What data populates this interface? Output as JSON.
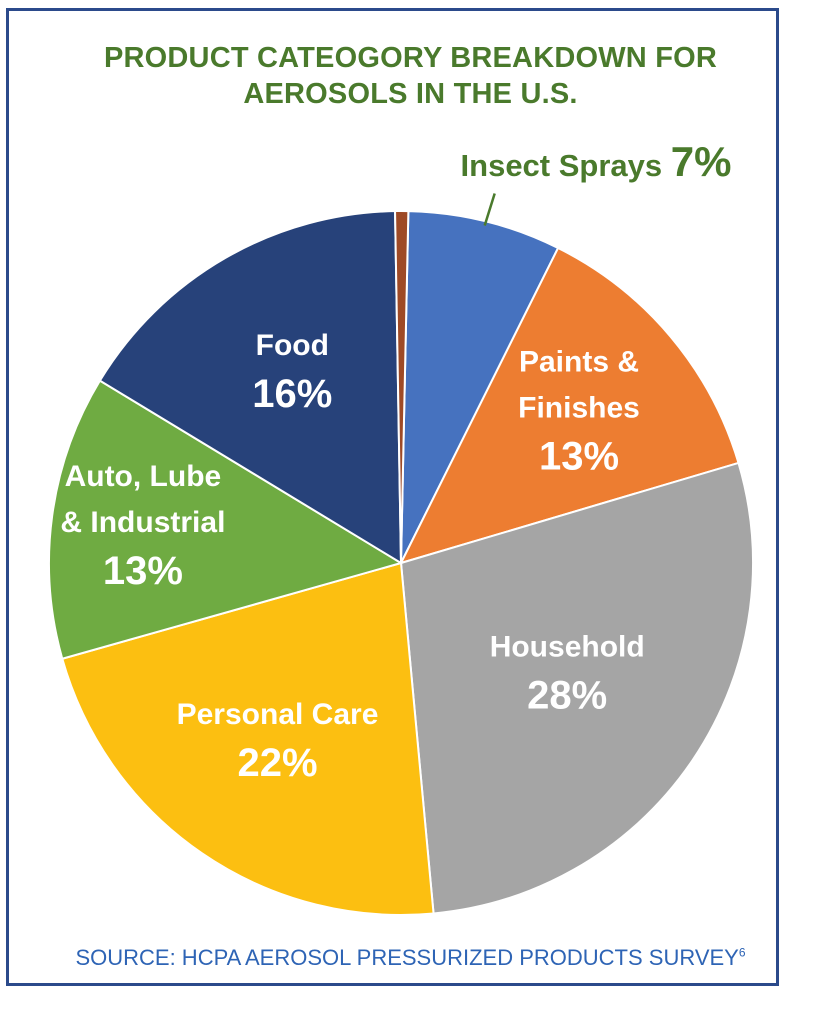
{
  "chart_data": {
    "type": "pie",
    "title": "PRODUCT CATEOGORY BREAKDOWN FOR AEROSOLS IN THE U.S.",
    "title_lines": [
      "PRODUCT CATEOGORY BREAKDOWN FOR",
      "AEROSOLS IN THE U.S."
    ],
    "slices": [
      {
        "label": "Insect Sprays",
        "value": 7,
        "value_text": "7%",
        "color": "#4672bf"
      },
      {
        "label": "Paints & Finishes",
        "label_lines": [
          "Paints &",
          "Finishes"
        ],
        "value": 13,
        "value_text": "13%",
        "color": "#ed7d31"
      },
      {
        "label": "Household",
        "label_lines": [
          "Household"
        ],
        "value": 28,
        "value_text": "28%",
        "color": "#a5a5a5"
      },
      {
        "label": "Personal Care",
        "label_lines": [
          "Personal Care"
        ],
        "value": 22,
        "value_text": "22%",
        "color": "#fcbf11"
      },
      {
        "label": "Auto, Lube & Industrial",
        "label_lines": [
          "Auto, Lube",
          "& Industrial"
        ],
        "value": 13,
        "value_text": "13%",
        "color": "#6fab42"
      },
      {
        "label": "Food",
        "label_lines": [
          "Food"
        ],
        "value": 16,
        "value_text": "16%",
        "color": "#27427a"
      },
      {
        "label": "",
        "value": 0.6,
        "value_text": "",
        "color": "#9e4a26"
      }
    ],
    "label_color": "#ffffff",
    "callout_color": "#4a7a2c",
    "source": "SOURCE: HCPA AEROSOL PRESSURIZED PRODUCTS SURVEY",
    "source_superscript": "6"
  }
}
